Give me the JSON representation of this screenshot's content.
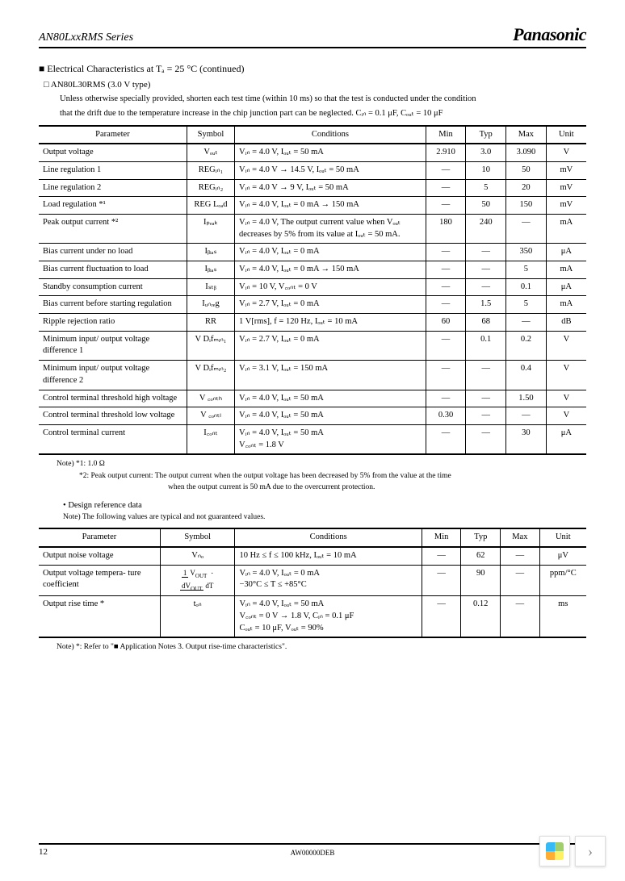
{
  "header": {
    "series": "AN80LxxRMS Series",
    "brand": "Panasonic"
  },
  "section": {
    "title": "Electrical Characteristics at Tₐ = 25 °C (continued)",
    "subtitle": "AN80L30RMS (3.0 V type)",
    "note1": "Unless otherwise specially provided, shorten each test time (within 10 ms) so that the test is conducted under the condition",
    "note2": "that the drift due to the temperature increase in the chip junction part can be neglected. Cᵢₙ = 0.1 μF, Cₒᵤₜ = 10 μF"
  },
  "table1": {
    "headers": [
      "Parameter",
      "Symbol",
      "Conditions",
      "Min",
      "Typ",
      "Max",
      "Unit"
    ],
    "rows": [
      {
        "p": "Output voltage",
        "s": "Vₒᵤₜ",
        "c": "Vᵢₙ = 4.0 V, Iₒᵤₜ = 50 mA",
        "min": "2.910",
        "typ": "3.0",
        "max": "3.090",
        "u": "V"
      },
      {
        "p": "Line regulation 1",
        "s": "REGᵢₙ₁",
        "c": "Vᵢₙ = 4.0 V → 14.5 V, Iₒᵤₜ = 50 mA",
        "min": "—",
        "typ": "10",
        "max": "50",
        "u": "mV"
      },
      {
        "p": "Line regulation 2",
        "s": "REGᵢₙ₂",
        "c": "Vᵢₙ = 4.0 V → 9 V, Iₒᵤₜ = 50 mA",
        "min": "—",
        "typ": "5",
        "max": "20",
        "u": "mV"
      },
      {
        "p": "Load regulation  *¹",
        "s": "REG Lₒₐd",
        "c": "Vᵢₙ = 4.0 V, Iₒᵤₜ = 0 mA → 150 mA",
        "min": "—",
        "typ": "50",
        "max": "150",
        "u": "mV"
      },
      {
        "p": "Peak output current  *²",
        "s": "Iₚₑₐₖ",
        "c": "Vᵢₙ = 4.0 V, The output current value when Vₒᵤₜ decreases by 5% from its value at Iₒᵤₜ = 50 mA.",
        "min": "180",
        "typ": "240",
        "max": "—",
        "u": "mA"
      },
      {
        "p": "Bias current under no load",
        "s": "Iᵦᵢₐₛ",
        "c": "Vᵢₙ = 4.0 V, Iₒᵤₜ = 0 mA",
        "min": "—",
        "typ": "—",
        "max": "350",
        "u": "μA"
      },
      {
        "p": "Bias current fluctuation to load",
        "s": "Iᵦᵢₐₛ",
        "c": "Vᵢₙ = 4.0 V, Iₒᵤₜ = 0 mA → 150 mA",
        "min": "—",
        "typ": "—",
        "max": "5",
        "u": "mA"
      },
      {
        "p": "Standby consumption current",
        "s": "Iₛₜᵦ",
        "c": "Vᵢₙ = 10 V, V꜀ₒₙₜ = 0 V",
        "min": "—",
        "typ": "—",
        "max": "0.1",
        "u": "μA"
      },
      {
        "p": "Bias current before starting regulation",
        "s": "Iᵤₙᵣₑg",
        "c": "Vᵢₙ = 2.7 V, Iₒᵤₜ = 0 mA",
        "min": "—",
        "typ": "1.5",
        "max": "5",
        "u": "mA"
      },
      {
        "p": "Ripple rejection ratio",
        "s": "RR",
        "c": "1 V[rms], f = 120 Hz, Iₒᵤₜ = 10 mA",
        "min": "60",
        "typ": "68",
        "max": "—",
        "u": "dB"
      },
      {
        "p": "Minimum input/ output voltage difference 1",
        "s": "V Dᵢfₘᵢₙ₁",
        "c": "Vᵢₙ = 2.7 V, Iₒᵤₜ = 0 mA",
        "min": "—",
        "typ": "0.1",
        "max": "0.2",
        "u": "V"
      },
      {
        "p": "Minimum input/ output voltage difference 2",
        "s": "V Dᵢfₘᵢₙ₂",
        "c": "Vᵢₙ = 3.1 V, Iₒᵤₜ = 150 mA",
        "min": "—",
        "typ": "—",
        "max": "0.4",
        "u": "V"
      },
      {
        "p": "Control terminal threshold high voltage",
        "s": "V ꜀ₒₙₜₕ",
        "c": "Vᵢₙ = 4.0 V, Iₒᵤₜ = 50 mA",
        "min": "—",
        "typ": "—",
        "max": "1.50",
        "u": "V"
      },
      {
        "p": "Control terminal threshold low voltage",
        "s": "V ꜀ₒₙₜₗ",
        "c": "Vᵢₙ = 4.0 V, Iₒᵤₜ = 50 mA",
        "min": "0.30",
        "typ": "—",
        "max": "—",
        "u": "V"
      },
      {
        "p": "Control terminal current",
        "s": "I꜀ₒₙₜ",
        "c": "Vᵢₙ = 4.0 V, Iₒᵤₜ = 50 mA\nV꜀ₒₙₜ = 1.8 V",
        "min": "—",
        "typ": "—",
        "max": "30",
        "u": "μA"
      }
    ]
  },
  "footnotes": {
    "n1": "Note) *1: 1.0 Ω",
    "n2": "*2: Peak output current: The output current when the output voltage has been decreased by 5% from the value at the time",
    "n2b": "when the output current is 50 mA due to the overcurrent protection."
  },
  "design": {
    "title": "Design reference data",
    "note": "Note) The following values are typical and not guaranteed values."
  },
  "table2": {
    "headers": [
      "Parameter",
      "Symbol",
      "Conditions",
      "Min",
      "Typ",
      "Max",
      "Unit"
    ],
    "rows": [
      {
        "p": "Output noise voltage",
        "s": "Vₙₒ",
        "c": "10 Hz ≤ f ≤ 100 kHz, Iₒᵤₜ = 10 mA",
        "min": "—",
        "typ": "62",
        "max": "—",
        "u": "μV"
      },
      {
        "p": "Output voltage tempera- ture coefficient",
        "s": "frac",
        "c": "Vᵢₙ = 4.0 V, Iₒᵤₜ = 0 mA\n−30°C ≤ T ≤ +85°C",
        "min": "—",
        "typ": "90",
        "max": "—",
        "u": "ppm/°C"
      },
      {
        "p": "Output rise time *",
        "s": "tₒₙ",
        "c": "Vᵢₙ = 4.0 V, Iₒᵤₜ = 50 mA\nV꜀ₒₙₜ = 0 V → 1.8 V, Cᵢₙ = 0.1 μF\nCₒᵤₜ = 10 μF, Vₒᵤₜ = 90%",
        "min": "—",
        "typ": "0.12",
        "max": "—",
        "u": "ms"
      }
    ]
  },
  "bottom_note": "Note) *: Refer to \"■ Application Notes 3. Output rise-time characteristics\".",
  "page_num": "12",
  "doc_code": "AW00000DEB"
}
